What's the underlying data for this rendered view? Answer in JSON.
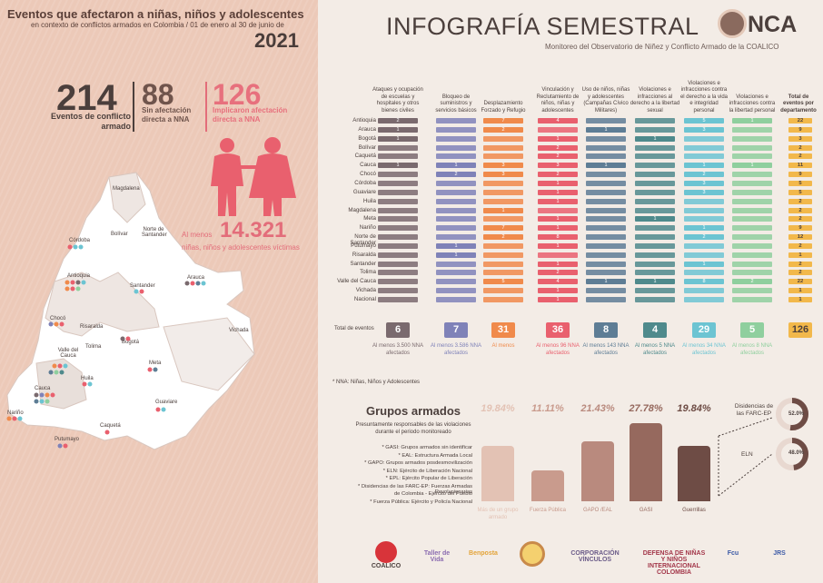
{
  "left": {
    "title": "Eventos que afectaron a niñas, niños y adolescentes",
    "subtitle": "en contexto de conflictos armados en Colombia / 01 de enero al 30 de junio de",
    "year": "2021",
    "stat1": {
      "value": "214",
      "label": "Eventos de conflicto armado"
    },
    "stat2": {
      "value": "88",
      "label": "Sin afectación directa a NNA"
    },
    "stat3": {
      "value": "126",
      "label": "Implicaron afectación directa a NNA"
    },
    "kids": {
      "prefix": "Al menos",
      "value": "14.321",
      "label": "niñas, niños y adolescentes víctimas"
    },
    "map_labels": [
      "Magdalena",
      "Bolívar",
      "Norte de Santander",
      "Córdoba",
      "Antioquia",
      "Santander",
      "Arauca",
      "Chocó",
      "Risaralda",
      "Vichada",
      "Valle del Cauca",
      "Tolima",
      "Bogotá",
      "Meta",
      "Huila",
      "Cauca",
      "Guaviare",
      "Nariño",
      "Caquetá",
      "Putumayo"
    ]
  },
  "right": {
    "title": "INFOGRAFÍA SEMESTRAL",
    "logo": "NCA",
    "subtitle": "Monitoreo del Observatorio de Niñez y Conflicto Armado de la COALICO",
    "columns": [
      "Ataques y ocupación de escuelas y hospitales y otros bienes civiles",
      "Bloqueo de suministros y servicios básicos",
      "Desplazamiento Forzado y Refugio",
      "Vinculación y Reclutamiento de niños, niñas y adolescentes",
      "Uso de niños, niñas y adolescentes (Campañas Cívico Militares)",
      "Violaciones e infracciones al derecho a la libertad sexual",
      "Violaciones e infracciones contra el derecho a la vida e integridad personal",
      "Violaciones e infracciones contra la libertad personal",
      "Total de eventos por departamento"
    ],
    "col_colors": [
      "#7a6a6e",
      "#7f82b8",
      "#f08a4b",
      "#e9606e",
      "#5e7d95",
      "#4f8a8c",
      "#6cc4d2",
      "#8fcf9e"
    ],
    "rows": [
      {
        "dept": "Antioquia",
        "v": [
          "2",
          "",
          "7",
          "4",
          "",
          "",
          "5",
          "1"
        ],
        "total": "22"
      },
      {
        "dept": "Arauca",
        "v": [
          "1",
          "",
          "2",
          "",
          "1",
          "",
          "3",
          ""
        ],
        "total": "9"
      },
      {
        "dept": "Bogotá",
        "v": [
          "1",
          "",
          "",
          "1",
          "",
          "1",
          "",
          ""
        ],
        "total": "3"
      },
      {
        "dept": "Bolívar",
        "v": [
          "",
          "",
          "",
          "2",
          "",
          "",
          "",
          ""
        ],
        "total": "2"
      },
      {
        "dept": "Caquetá",
        "v": [
          "",
          "",
          "",
          "2",
          "",
          "",
          "",
          ""
        ],
        "total": "2"
      },
      {
        "dept": "Cauca",
        "v": [
          "1",
          "1",
          "3",
          "3",
          "1",
          "",
          "1",
          "1"
        ],
        "total": "11"
      },
      {
        "dept": "Chocó",
        "v": [
          "",
          "2",
          "3",
          "2",
          "",
          "",
          "2",
          ""
        ],
        "total": "9"
      },
      {
        "dept": "Córdoba",
        "v": [
          "",
          "",
          "",
          "1",
          "",
          "",
          "3",
          ""
        ],
        "total": "5"
      },
      {
        "dept": "Guaviare",
        "v": [
          "",
          "",
          "",
          "1",
          "",
          "",
          "3",
          ""
        ],
        "total": "5"
      },
      {
        "dept": "Huila",
        "v": [
          "",
          "",
          "",
          "1",
          "",
          "",
          "",
          ""
        ],
        "total": "2"
      },
      {
        "dept": "Magdalena",
        "v": [
          "",
          "",
          "1",
          "",
          "",
          "",
          "",
          ""
        ],
        "total": "2"
      },
      {
        "dept": "Meta",
        "v": [
          "",
          "",
          "",
          "1",
          "",
          "1",
          "",
          ""
        ],
        "total": "2"
      },
      {
        "dept": "Nariño",
        "v": [
          "",
          "",
          "7",
          "1",
          "",
          "",
          "1",
          ""
        ],
        "total": "9"
      },
      {
        "dept": "Norte de Santander",
        "v": [
          "",
          "",
          "2",
          "8",
          "",
          "",
          "2",
          ""
        ],
        "total": "12"
      },
      {
        "dept": "Putumayo",
        "v": [
          "",
          "1",
          "",
          "1",
          "",
          "",
          "",
          ""
        ],
        "total": "2"
      },
      {
        "dept": "Risaralda",
        "v": [
          "",
          "1",
          "",
          "",
          "",
          "",
          "",
          ""
        ],
        "total": "1"
      },
      {
        "dept": "Santander",
        "v": [
          "",
          "",
          "",
          "1",
          "",
          "",
          "1",
          ""
        ],
        "total": "2"
      },
      {
        "dept": "Tolima",
        "v": [
          "",
          "",
          "",
          "2",
          "",
          "",
          "",
          ""
        ],
        "total": "2"
      },
      {
        "dept": "Valle del Cauca",
        "v": [
          "",
          "",
          "5",
          "4",
          "1",
          "1",
          "8",
          "2"
        ],
        "total": "22"
      },
      {
        "dept": "Vichada",
        "v": [
          "",
          "",
          "",
          "1",
          "",
          "",
          "",
          ""
        ],
        "total": "1"
      },
      {
        "dept": "Nacional",
        "v": [
          "",
          "",
          "",
          "1",
          "",
          "",
          "",
          ""
        ],
        "total": "1"
      }
    ],
    "totals_label": "Total de eventos",
    "totals": [
      "6",
      "7",
      "31",
      "36",
      "8",
      "4",
      "29",
      "5",
      "126"
    ],
    "totals_notes": [
      "Al menos 3.500 NNA afectados",
      "Al menos 3.586 NNA afectados",
      "Al menos",
      "Al menos 96 NNA afectados",
      "Al menos 143 NNA afectados",
      "Al menos 5 NNA afectados",
      "Al menos 34 NNA afectados",
      "Al menos 8 NNA afectados"
    ],
    "nna_note": "* NNA: Niñas, Niños y Adolescentes"
  },
  "grupos": {
    "title": "Grupos armados",
    "subtitle": "Presuntamente responsables de las violaciones durante el periodo monitoreado",
    "notes": [
      "* GASI: Grupos armados sin identificar",
      "* EAL: Estructura Armada Local",
      "* GAPO: Grupos armados posdesmovilización",
      "* ELN: Ejército de Liberación Nacional",
      "* EPL: Ejército Popular de Liberación",
      "* Disidencias de las FARC-EP: Fuerzas Armadas Revolucionarias",
      "de Colombia - Ejército del Pueblo",
      "* Fuerza Pública: Ejército y Policía Nacional"
    ],
    "bars": [
      {
        "pct": "19.84%",
        "value": 19.84,
        "label": "Más de un grupo armado",
        "color": "#e3c2b4"
      },
      {
        "pct": "11.11%",
        "value": 11.11,
        "label": "Fuerza Pública",
        "color": "#c99b8d"
      },
      {
        "pct": "21.43%",
        "value": 21.43,
        "label": "GAPO /EAL",
        "color": "#b98a7e"
      },
      {
        "pct": "27.78%",
        "value": 27.78,
        "label": "GASI",
        "color": "#96695e"
      },
      {
        "pct": "19.84%",
        "value": 19.84,
        "label": "Guerrillas",
        "color": "#6e4c45"
      }
    ],
    "guerrillas": [
      {
        "label": "Disidencias de las FARC-EP",
        "pct": "52.0%",
        "value": 52.0
      },
      {
        "label": "ELN",
        "pct": "48.0%",
        "value": 48.0
      }
    ]
  },
  "logos": [
    "COALICO",
    "Taller de Vida",
    "Benposta",
    "",
    "CORPORACIÓN VÍNCULOS",
    "DEFENSA DE NIÑAS Y NIÑOS INTERNACIONAL COLOMBIA",
    "Fcu",
    "JRS"
  ]
}
